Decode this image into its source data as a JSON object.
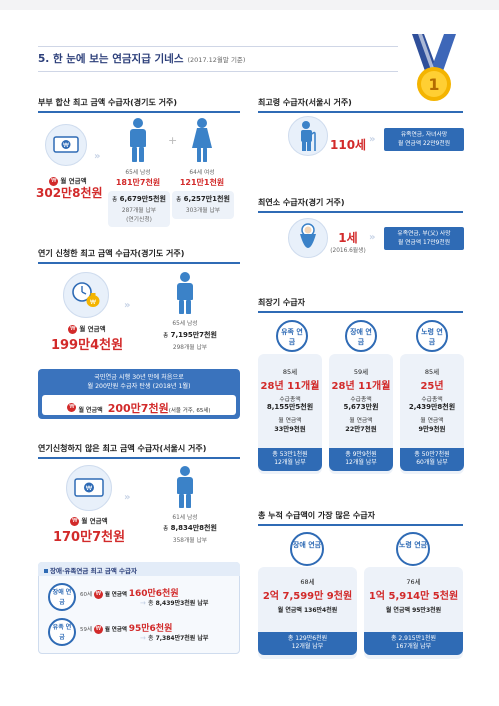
{
  "title": "5. 한 눈에 보는 연금지급 기네스",
  "subtitle": "(2017.12월말 기준)",
  "medal_number": "1",
  "s1": {
    "heading": "부부 합산 최고 금액 수급자(경기도 거주)",
    "label": "월 연금액",
    "amount": "302만8천원",
    "man": {
      "desc": "65세 남성",
      "monthly": "181만7천원",
      "total_label": "총",
      "total": "6,679만5천원",
      "months": "287개월 납부",
      "note": "(연기신청)"
    },
    "woman": {
      "desc": "64세 여성",
      "monthly": "121만1천원",
      "total_label": "총",
      "total": "6,257만1천원",
      "months": "303개월 납부"
    }
  },
  "s2": {
    "heading": "연기 신청한 최고 금액 수급자(경기도 거주)",
    "label": "월 연금액",
    "amount": "199만4천원",
    "desc": "65세 남성",
    "total_label": "총",
    "total": "7,195만7천원",
    "months": "298개월 납부",
    "banner1": "국민연금 시행 30년 만에 처음으로",
    "banner2": "월 200만원 수급자 탄생 (2018년 1월)",
    "banner_label": "월 연금액",
    "banner_amount": "200만7천원",
    "banner_note": "(서울 거주, 65세)"
  },
  "s3": {
    "heading": "연기신청하지 않은 최고 금액 수급자(서울시 거주)",
    "label": "월 연금액",
    "amount": "170만7천원",
    "desc": "61세 남성",
    "total_label": "총",
    "total": "8,834만8천원",
    "months": "358개월 납부"
  },
  "s4": {
    "heading": "장애·유족연금 최고 금액 수급자",
    "rows": [
      {
        "type": "장애 연금",
        "age": "60세",
        "label": "월 연금액",
        "amount": "160만6천원",
        "total_label": "총",
        "total": "8,439만3천원 납부"
      },
      {
        "type": "유족 연금",
        "age": "59세",
        "label": "월 연금액",
        "amount": "95만6천원",
        "total_label": "총",
        "total": "7,384만7천원 납부"
      }
    ]
  },
  "r1": {
    "heading": "최고령 수급자(서울시 거주)",
    "age": "110세",
    "type": "유족연금, 자녀사망",
    "amount": "월 연금액 22만9천원"
  },
  "r2": {
    "heading": "최연소 수급자(경기 거주)",
    "age": "1세",
    "birth": "(2016.6월생)",
    "type": "유족연금, 부(父) 사망",
    "amount": "월 연금액 17만9천원"
  },
  "r3": {
    "heading": "최장기 수급자",
    "cols": [
      {
        "type": "유족 연금",
        "age": "85세",
        "period": "28년 11개월",
        "total_label": "수급총액",
        "total": "8,155만5천원",
        "label": "월 연금액",
        "monthly": "33만9천원",
        "paid": "총 53만1천원",
        "months": "12개월 납부"
      },
      {
        "type": "장애 연금",
        "age": "59세",
        "period": "28년 11개월",
        "total_label": "수급총액",
        "total": "5,673만원",
        "label": "월 연금액",
        "monthly": "22만7천원",
        "paid": "총 9만9천원",
        "months": "12개월 납부"
      },
      {
        "type": "노령 연금",
        "age": "85세",
        "period": "25년",
        "total_label": "수급총액",
        "total": "2,439만8천원",
        "label": "월 연금액",
        "monthly": "9만9천원",
        "paid": "총 50만7천원",
        "months": "60개월 납부"
      }
    ]
  },
  "r4": {
    "heading": "총 누적 수급액이 가장 많은 수급자",
    "cols": [
      {
        "type": "장애 연금",
        "age": "68세",
        "total": "2억 7,599만 9천원",
        "monthly": "월 연금액 136만4천원",
        "paid": "총 129만6천원",
        "months": "12개월 납부"
      },
      {
        "type": "노령 연금",
        "age": "76세",
        "total": "1억 5,914만 5천원",
        "monthly": "월 연금액 95만3천원",
        "paid": "총 2,915만1천원",
        "months": "167개월 납부"
      }
    ]
  },
  "colors": {
    "accent": "#2f6bb5",
    "red": "#d22a2a",
    "panel": "#edf2f9"
  }
}
